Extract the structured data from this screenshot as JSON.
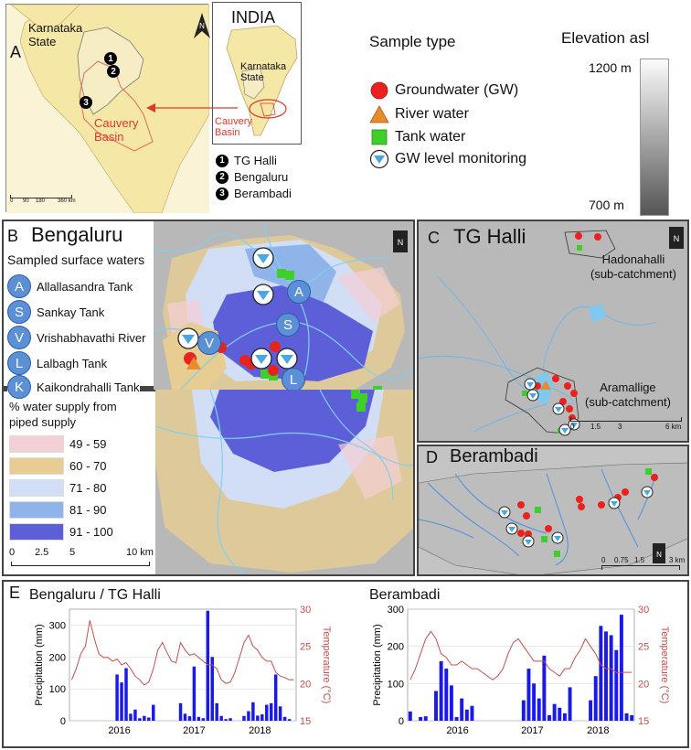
{
  "panel_a": {
    "letter": "A",
    "state_label": "Karnataka\nState",
    "basin_label": "Cauvery\nBasin",
    "inset_title": "INDIA",
    "inset_state": "Karnataka\nState",
    "inset_basin": "Cauvery\nBasin",
    "scale_ticks": [
      "0",
      "90",
      "180",
      "360 km"
    ],
    "sites": [
      {
        "num": "1",
        "name": "TG Halli"
      },
      {
        "num": "2",
        "name": "Bengaluru"
      },
      {
        "num": "3",
        "name": "Berambadi"
      }
    ],
    "north": "N"
  },
  "sample_type": {
    "title": "Sample type",
    "items": [
      {
        "label": "Groundwater (GW)",
        "symbol": "red-circle",
        "color": "#e8231f"
      },
      {
        "label": "River water",
        "symbol": "orange-triangle",
        "color": "#e98b2a"
      },
      {
        "label": "Tank water",
        "symbol": "green-square",
        "color": "#3fcf2a"
      },
      {
        "label": "GW level monitoring",
        "symbol": "blue-triangle-in-circle",
        "color": "#4aa6e0"
      }
    ]
  },
  "elevation": {
    "title": "Elevation asl",
    "max": "1200 m",
    "min": "700 m"
  },
  "panel_b": {
    "letter": "B",
    "title": "Bengaluru",
    "subtitle": "Sampled surface waters",
    "waters": [
      {
        "code": "A",
        "name": "Allallasandra Tank"
      },
      {
        "code": "S",
        "name": "Sankay Tank"
      },
      {
        "code": "V",
        "name": "Vrishabhavathi River"
      },
      {
        "code": "L",
        "name": "Lalbagh Tank"
      },
      {
        "code": "K",
        "name": "Kaikondrahalli Tank"
      }
    ],
    "supply_title": "% water supply from\npiped supply",
    "supply_classes": [
      {
        "label": "49 - 59",
        "color": "#f3cfd6"
      },
      {
        "label": "60 - 70",
        "color": "#e7cd92"
      },
      {
        "label": "71 - 80",
        "color": "#d2def5"
      },
      {
        "label": "81 - 90",
        "color": "#8fb4ea"
      },
      {
        "label": "91 - 100",
        "color": "#5d5fd8"
      }
    ],
    "scale_ticks": [
      "0",
      "2.5",
      "5",
      "10 km"
    ],
    "map_letters": [
      "A",
      "S",
      "V",
      "L",
      "K"
    ],
    "north": "N"
  },
  "panel_c": {
    "letter": "C",
    "title": "TG Halli",
    "sub1": "Hadonahalli\n(sub-catchment)",
    "sub2": "Aramallige\n(sub-catchment)",
    "scale_ticks": [
      "0",
      "1.5",
      "3",
      "6 km"
    ],
    "north": "N"
  },
  "panel_d": {
    "letter": "D",
    "title": "Berambadi",
    "scale_ticks": [
      "0",
      "0.75",
      "1.5",
      "3 km"
    ],
    "north": "N"
  },
  "panel_e": {
    "letter": "E",
    "charts_colors": {
      "bar": "#1a1ae8",
      "temp": "#c0504d"
    }
  },
  "chart_data": [
    {
      "type": "bar",
      "title": "Bengaluru / TG Halli",
      "ylabel": "Precipitation (mm)",
      "y2label": "Temperature (°C)",
      "ylim": [
        0,
        350
      ],
      "y2lim": [
        15,
        30
      ],
      "yticks": [
        0,
        100,
        200,
        300
      ],
      "y2ticks": [
        15,
        20,
        25,
        30
      ],
      "xticks": [
        "2016",
        "2017",
        "2018"
      ],
      "series": [
        {
          "values": [
            0,
            0,
            0,
            0,
            0,
            0,
            0,
            0,
            0,
            0,
            145,
            120,
            165,
            22,
            35,
            8,
            15,
            10,
            50,
            0,
            0,
            0,
            0,
            0,
            55,
            22,
            14,
            170,
            12,
            8,
            345,
            200,
            55,
            15,
            5,
            8,
            0,
            0,
            15,
            30,
            58,
            16,
            20,
            50,
            55,
            145,
            45,
            12,
            5,
            0
          ]
        },
        {
          "values": [
            20.5,
            22,
            24,
            25,
            28.5,
            26,
            24,
            23.5,
            23.5,
            23,
            23.3,
            22.5,
            22.8,
            22,
            21,
            20.5,
            19.8,
            20.2,
            22,
            24.5,
            25.5,
            24.2,
            23,
            22.8,
            25.5,
            24.5,
            23.8,
            24,
            23.5,
            23,
            22.5,
            22.5,
            22,
            20.5,
            20,
            20.2,
            21.5,
            23.5,
            25.5,
            26.5,
            25,
            24.5,
            23.5,
            23,
            23,
            21.5,
            21,
            20.8,
            20.5,
            20.5
          ]
        }
      ]
    },
    {
      "type": "bar",
      "title": "Berambadi",
      "ylabel": "Precipitation (mm)",
      "y2label": "Temperature (°C)",
      "ylim": [
        0,
        300
      ],
      "y2lim": [
        15,
        30
      ],
      "yticks": [
        0,
        100,
        200,
        300
      ],
      "y2ticks": [
        15,
        20,
        25,
        30
      ],
      "xticks": [
        "2016",
        "2017",
        "2018"
      ],
      "series": [
        {
          "values": [
            25,
            0,
            10,
            12,
            0,
            80,
            160,
            140,
            95,
            10,
            60,
            30,
            40,
            0,
            0,
            0,
            0,
            0,
            0,
            0,
            0,
            0,
            55,
            140,
            100,
            60,
            175,
            15,
            45,
            35,
            20,
            90,
            0,
            0,
            0,
            55,
            120,
            255,
            240,
            230,
            190,
            285,
            20,
            15
          ]
        },
        {
          "values": [
            20.5,
            22,
            24,
            26,
            27,
            26,
            24,
            23.5,
            22.5,
            22.5,
            23,
            22.5,
            22,
            22,
            21.5,
            21,
            20.5,
            21,
            22,
            24,
            25.5,
            26,
            25,
            24,
            23,
            23,
            23,
            22,
            21.5,
            21,
            22,
            22,
            23.5,
            24.5,
            26,
            25,
            24,
            22.5,
            22,
            22,
            21.5,
            21.5,
            21.5,
            21.5
          ]
        }
      ]
    }
  ]
}
